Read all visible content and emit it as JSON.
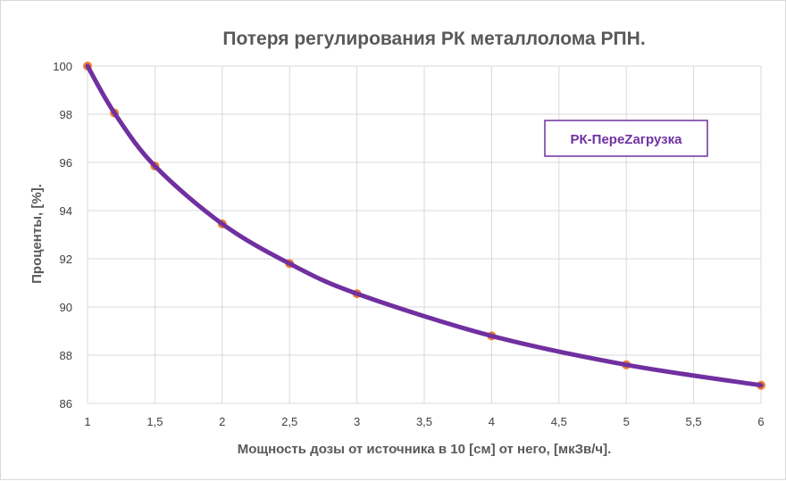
{
  "chart_data": {
    "type": "scatter",
    "title": "Потеря регулирования РК металлолома РПН.",
    "xlabel": "Мощность дозы от источника в 10 [см] от него, [мкЗв/ч].",
    "ylabel": "Проценты, [%].",
    "annotation": "РК-ПереZагрузка",
    "xlim": [
      1,
      6
    ],
    "ylim": [
      86,
      100
    ],
    "x_ticks": [
      "1",
      "1,5",
      "2",
      "2,5",
      "3",
      "3,5",
      "4",
      "4,5",
      "5",
      "5,5",
      "6"
    ],
    "y_ticks": [
      "86",
      "88",
      "90",
      "92",
      "94",
      "96",
      "98",
      "100"
    ],
    "grid": true,
    "series": [
      {
        "marker_color": "#ed7d31",
        "line_color": "#7030a0",
        "x": [
          1,
          1.2,
          1.5,
          2,
          2.5,
          3,
          4,
          5,
          6
        ],
        "y": [
          100,
          98.05,
          95.85,
          93.45,
          91.8,
          90.55,
          88.8,
          87.6,
          86.75
        ]
      }
    ]
  }
}
